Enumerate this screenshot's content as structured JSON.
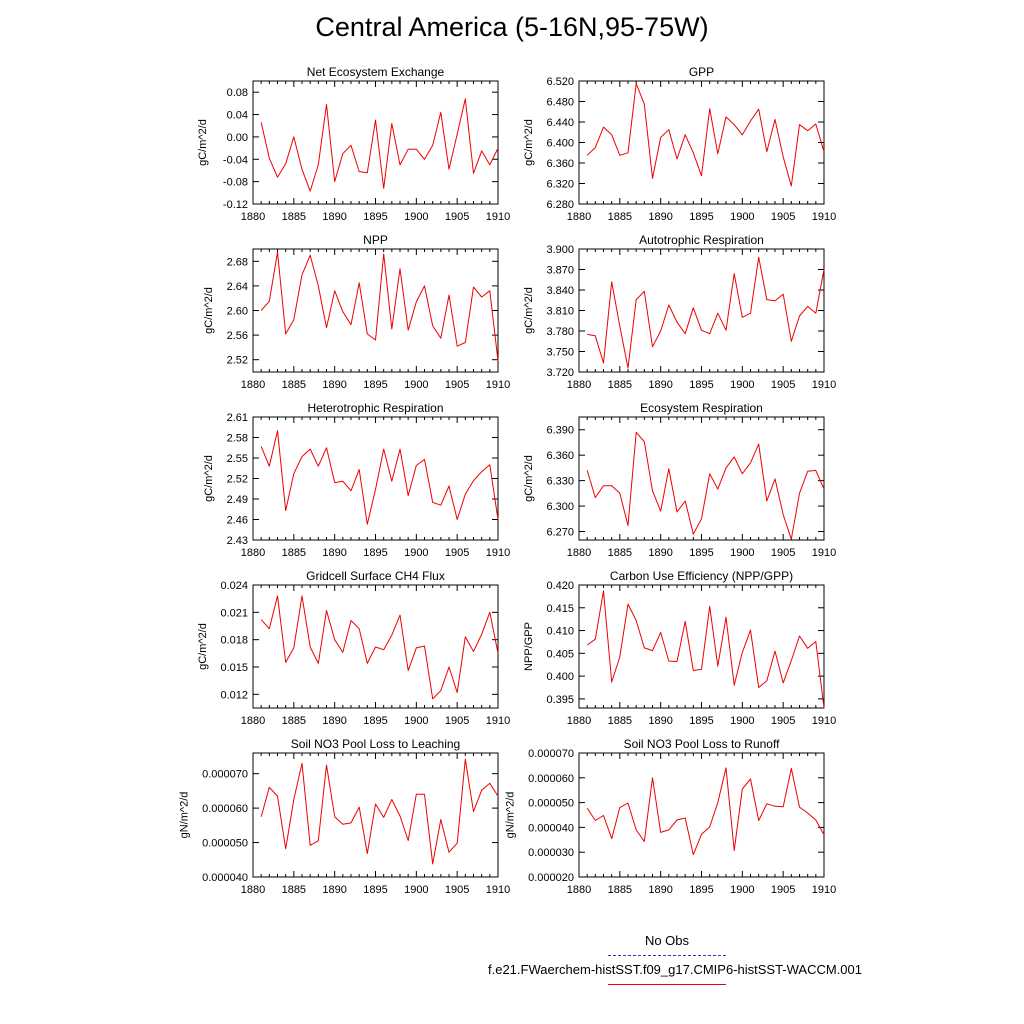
{
  "title": "Central America (5-16N,95-75W)",
  "series_color": "#ee0000",
  "obs_color": "#3333cc",
  "legend": {
    "obs_label": "No Obs",
    "model_label": "f.e21.FWaerchem-histSST.f09_g17.CMIP6-histSST-WACCM.001"
  },
  "chart_data": [
    {
      "type": "line",
      "title": "Net Ecosystem Exchange",
      "ylabel": "gC/m^2/d",
      "xlim": [
        1880,
        1910
      ],
      "ylim": [
        -0.12,
        0.1
      ],
      "x_ticks": [
        "1880",
        "1885",
        "1890",
        "1895",
        "1900",
        "1905",
        "1910"
      ],
      "y_ticks": [
        "-0.12",
        "-0.08",
        "-0.04",
        "0.00",
        "0.04",
        "0.08"
      ],
      "x": [
        1881,
        1882,
        1883,
        1884,
        1885,
        1886,
        1887,
        1888,
        1889,
        1890,
        1891,
        1892,
        1893,
        1894,
        1895,
        1896,
        1897,
        1898,
        1899,
        1900,
        1901,
        1902,
        1903,
        1904,
        1905,
        1906,
        1907,
        1908,
        1909,
        1910
      ],
      "series": [
        {
          "name": "f.e21.FWaerchem-histSST.f09_g17.CMIP6-histSST-WACCM.001",
          "values": [
            0.026,
            -0.038,
            -0.072,
            -0.048,
            0.0,
            -0.058,
            -0.097,
            -0.05,
            0.058,
            -0.08,
            -0.03,
            -0.015,
            -0.062,
            -0.064,
            0.03,
            -0.092,
            0.024,
            -0.05,
            -0.022,
            -0.022,
            -0.04,
            -0.015,
            0.044,
            -0.058,
            0.005,
            0.068,
            -0.065,
            -0.025,
            -0.05,
            -0.02
          ]
        }
      ]
    },
    {
      "type": "line",
      "title": "GPP",
      "ylabel": "gC/m^2/d",
      "xlim": [
        1880,
        1910
      ],
      "ylim": [
        6.28,
        6.52
      ],
      "x_ticks": [
        "1880",
        "1885",
        "1890",
        "1895",
        "1900",
        "1905",
        "1910"
      ],
      "y_ticks": [
        "6.280",
        "6.320",
        "6.360",
        "6.400",
        "6.440",
        "6.480",
        "6.520"
      ],
      "x": [
        1881,
        1882,
        1883,
        1884,
        1885,
        1886,
        1887,
        1888,
        1889,
        1890,
        1891,
        1892,
        1893,
        1894,
        1895,
        1896,
        1897,
        1898,
        1899,
        1900,
        1901,
        1902,
        1903,
        1904,
        1905,
        1906,
        1907,
        1908,
        1909,
        1910
      ],
      "series": [
        {
          "name": "f.e21.FWaerchem-histSST.f09_g17.CMIP6-histSST-WACCM.001",
          "values": [
            6.375,
            6.39,
            6.43,
            6.415,
            6.375,
            6.38,
            6.515,
            6.475,
            6.33,
            6.41,
            6.425,
            6.368,
            6.415,
            6.38,
            6.335,
            6.466,
            6.378,
            6.45,
            6.435,
            6.415,
            6.442,
            6.465,
            6.382,
            6.445,
            6.372,
            6.315,
            6.435,
            6.423,
            6.436,
            6.382
          ]
        }
      ]
    },
    {
      "type": "line",
      "title": "NPP",
      "ylabel": "gC/m^2/d",
      "xlim": [
        1880,
        1910
      ],
      "ylim": [
        2.5,
        2.7
      ],
      "x_ticks": [
        "1880",
        "1885",
        "1890",
        "1895",
        "1900",
        "1905",
        "1910"
      ],
      "y_ticks": [
        "2.52",
        "2.56",
        "2.60",
        "2.64",
        "2.68"
      ],
      "x": [
        1881,
        1882,
        1883,
        1884,
        1885,
        1886,
        1887,
        1888,
        1889,
        1890,
        1891,
        1892,
        1893,
        1894,
        1895,
        1896,
        1897,
        1898,
        1899,
        1900,
        1901,
        1902,
        1903,
        1904,
        1905,
        1906,
        1907,
        1908,
        1909,
        1910
      ],
      "series": [
        {
          "name": "f.e21.FWaerchem-histSST.f09_g17.CMIP6-histSST-WACCM.001",
          "values": [
            2.6,
            2.615,
            2.695,
            2.562,
            2.585,
            2.658,
            2.69,
            2.64,
            2.572,
            2.632,
            2.598,
            2.577,
            2.645,
            2.562,
            2.552,
            2.692,
            2.57,
            2.668,
            2.568,
            2.614,
            2.64,
            2.575,
            2.555,
            2.625,
            2.542,
            2.548,
            2.638,
            2.622,
            2.632,
            2.518
          ]
        }
      ]
    },
    {
      "type": "line",
      "title": "Autotrophic Respiration",
      "ylabel": "gC/m^2/d",
      "xlim": [
        1880,
        1910
      ],
      "ylim": [
        3.72,
        3.9
      ],
      "x_ticks": [
        "1880",
        "1885",
        "1890",
        "1895",
        "1900",
        "1905",
        "1910"
      ],
      "y_ticks": [
        "3.720",
        "3.750",
        "3.780",
        "3.810",
        "3.840",
        "3.870",
        "3.900"
      ],
      "x": [
        1881,
        1882,
        1883,
        1884,
        1885,
        1886,
        1887,
        1888,
        1889,
        1890,
        1891,
        1892,
        1893,
        1894,
        1895,
        1896,
        1897,
        1898,
        1899,
        1900,
        1901,
        1902,
        1903,
        1904,
        1905,
        1906,
        1907,
        1908,
        1909,
        1910
      ],
      "series": [
        {
          "name": "f.e21.FWaerchem-histSST.f09_g17.CMIP6-histSST-WACCM.001",
          "values": [
            3.775,
            3.773,
            3.733,
            3.852,
            3.787,
            3.726,
            3.826,
            3.838,
            3.757,
            3.78,
            3.818,
            3.793,
            3.776,
            3.814,
            3.781,
            3.776,
            3.806,
            3.781,
            3.864,
            3.8,
            3.806,
            3.888,
            3.826,
            3.824,
            3.834,
            3.765,
            3.802,
            3.816,
            3.806,
            3.87
          ]
        }
      ]
    },
    {
      "type": "line",
      "title": "Heterotrophic Respiration",
      "ylabel": "gC/m^2/d",
      "xlim": [
        1880,
        1910
      ],
      "ylim": [
        2.43,
        2.61
      ],
      "x_ticks": [
        "1880",
        "1885",
        "1890",
        "1895",
        "1900",
        "1905",
        "1910"
      ],
      "y_ticks": [
        "2.43",
        "2.46",
        "2.49",
        "2.52",
        "2.55",
        "2.58",
        "2.61"
      ],
      "x": [
        1881,
        1882,
        1883,
        1884,
        1885,
        1886,
        1887,
        1888,
        1889,
        1890,
        1891,
        1892,
        1893,
        1894,
        1895,
        1896,
        1897,
        1898,
        1899,
        1900,
        1901,
        1902,
        1903,
        1904,
        1905,
        1906,
        1907,
        1908,
        1909,
        1910
      ],
      "series": [
        {
          "name": "f.e21.FWaerchem-histSST.f09_g17.CMIP6-histSST-WACCM.001",
          "values": [
            2.567,
            2.538,
            2.59,
            2.473,
            2.527,
            2.552,
            2.563,
            2.538,
            2.565,
            2.514,
            2.516,
            2.502,
            2.533,
            2.453,
            2.504,
            2.563,
            2.516,
            2.563,
            2.495,
            2.539,
            2.548,
            2.485,
            2.481,
            2.509,
            2.46,
            2.497,
            2.517,
            2.53,
            2.54,
            2.46
          ]
        }
      ]
    },
    {
      "type": "line",
      "title": "Ecosystem Respiration",
      "ylabel": "gC/m^2/d",
      "xlim": [
        1880,
        1910
      ],
      "ylim": [
        6.26,
        6.405
      ],
      "x_ticks": [
        "1880",
        "1885",
        "1890",
        "1895",
        "1900",
        "1905",
        "1910"
      ],
      "y_ticks": [
        "6.270",
        "6.300",
        "6.330",
        "6.360",
        "6.390"
      ],
      "x": [
        1881,
        1882,
        1883,
        1884,
        1885,
        1886,
        1887,
        1888,
        1889,
        1890,
        1891,
        1892,
        1893,
        1894,
        1895,
        1896,
        1897,
        1898,
        1899,
        1900,
        1901,
        1902,
        1903,
        1904,
        1905,
        1906,
        1907,
        1908,
        1909,
        1910
      ],
      "series": [
        {
          "name": "f.e21.FWaerchem-histSST.f09_g17.CMIP6-histSST-WACCM.001",
          "values": [
            6.342,
            6.31,
            6.324,
            6.324,
            6.315,
            6.277,
            6.387,
            6.376,
            6.318,
            6.294,
            6.344,
            6.293,
            6.306,
            6.267,
            6.285,
            6.338,
            6.32,
            6.345,
            6.358,
            6.338,
            6.351,
            6.373,
            6.306,
            6.332,
            6.29,
            6.261,
            6.315,
            6.341,
            6.342,
            6.32
          ]
        }
      ]
    },
    {
      "type": "line",
      "title": "Gridcell Surface CH4 Flux",
      "ylabel": "gC/m^2/d",
      "xlim": [
        1880,
        1910
      ],
      "ylim": [
        0.0105,
        0.024
      ],
      "x_ticks": [
        "1880",
        "1885",
        "1890",
        "1895",
        "1900",
        "1905",
        "1910"
      ],
      "y_ticks": [
        "0.012",
        "0.015",
        "0.018",
        "0.021",
        "0.024"
      ],
      "x": [
        1881,
        1882,
        1883,
        1884,
        1885,
        1886,
        1887,
        1888,
        1889,
        1890,
        1891,
        1892,
        1893,
        1894,
        1895,
        1896,
        1897,
        1898,
        1899,
        1900,
        1901,
        1902,
        1903,
        1904,
        1905,
        1906,
        1907,
        1908,
        1909,
        1910
      ],
      "series": [
        {
          "name": "f.e21.FWaerchem-histSST.f09_g17.CMIP6-histSST-WACCM.001",
          "values": [
            0.0202,
            0.0192,
            0.0228,
            0.0155,
            0.0171,
            0.0228,
            0.0172,
            0.0154,
            0.0212,
            0.018,
            0.0166,
            0.0201,
            0.0192,
            0.0154,
            0.0172,
            0.0169,
            0.0185,
            0.0207,
            0.0146,
            0.0171,
            0.0173,
            0.0115,
            0.0124,
            0.015,
            0.0122,
            0.0183,
            0.0167,
            0.0186,
            0.021,
            0.0165
          ]
        }
      ]
    },
    {
      "type": "line",
      "title": "Carbon Use Efficiency (NPP/GPP)",
      "ylabel": "NPP/GPP",
      "xlim": [
        1880,
        1910
      ],
      "ylim": [
        0.393,
        0.42
      ],
      "x_ticks": [
        "1880",
        "1885",
        "1890",
        "1895",
        "1900",
        "1905",
        "1910"
      ],
      "y_ticks": [
        "0.395",
        "0.400",
        "0.405",
        "0.410",
        "0.415",
        "0.420"
      ],
      "x": [
        1881,
        1882,
        1883,
        1884,
        1885,
        1886,
        1887,
        1888,
        1889,
        1890,
        1891,
        1892,
        1893,
        1894,
        1895,
        1896,
        1897,
        1898,
        1899,
        1900,
        1901,
        1902,
        1903,
        1904,
        1905,
        1906,
        1907,
        1908,
        1909,
        1910
      ],
      "series": [
        {
          "name": "f.e21.FWaerchem-histSST.f09_g17.CMIP6-histSST-WACCM.001",
          "values": [
            0.4068,
            0.4081,
            0.4187,
            0.3987,
            0.4042,
            0.4158,
            0.4122,
            0.4062,
            0.4056,
            0.4096,
            0.4033,
            0.4032,
            0.412,
            0.4012,
            0.4015,
            0.4153,
            0.4022,
            0.4129,
            0.398,
            0.4052,
            0.4101,
            0.3975,
            0.399,
            0.4055,
            0.3985,
            0.4034,
            0.4088,
            0.4061,
            0.4076,
            0.393
          ]
        }
      ]
    },
    {
      "type": "line",
      "title": "Soil NO3 Pool Loss to Leaching",
      "ylabel": "gN/m^2/d",
      "xlim": [
        1880,
        1910
      ],
      "ylim": [
        4e-05,
        7.6e-05
      ],
      "x_ticks": [
        "1880",
        "1885",
        "1890",
        "1895",
        "1900",
        "1905",
        "1910"
      ],
      "y_ticks": [
        "0.000040",
        "0.000050",
        "0.000060",
        "0.000070"
      ],
      "x": [
        1881,
        1882,
        1883,
        1884,
        1885,
        1886,
        1887,
        1888,
        1889,
        1890,
        1891,
        1892,
        1893,
        1894,
        1895,
        1896,
        1897,
        1898,
        1899,
        1900,
        1901,
        1902,
        1903,
        1904,
        1905,
        1906,
        1907,
        1908,
        1909,
        1910
      ],
      "series": [
        {
          "name": "f.e21.FWaerchem-histSST.f09_g17.CMIP6-histSST-WACCM.001",
          "values": [
            5.75e-05,
            6.6e-05,
            6.35e-05,
            4.82e-05,
            6.25e-05,
            7.3e-05,
            4.92e-05,
            5.05e-05,
            7.25e-05,
            5.75e-05,
            5.53e-05,
            5.57e-05,
            6.03e-05,
            4.68e-05,
            6.12e-05,
            5.73e-05,
            6.25e-05,
            5.77e-05,
            5.06e-05,
            6.4e-05,
            6.4e-05,
            4.38e-05,
            5.67e-05,
            4.72e-05,
            4.98e-05,
            7.42e-05,
            5.9e-05,
            6.52e-05,
            6.72e-05,
            6.35e-05
          ]
        }
      ]
    },
    {
      "type": "line",
      "title": "Soil NO3 Pool Loss to Runoff",
      "ylabel": "gN/m^2/d",
      "xlim": [
        1880,
        1910
      ],
      "ylim": [
        2e-05,
        7e-05
      ],
      "x_ticks": [
        "1880",
        "1885",
        "1890",
        "1895",
        "1900",
        "1905",
        "1910"
      ],
      "y_ticks": [
        "0.000020",
        "0.000030",
        "0.000040",
        "0.000050",
        "0.000060",
        "0.000070"
      ],
      "x": [
        1881,
        1882,
        1883,
        1884,
        1885,
        1886,
        1887,
        1888,
        1889,
        1890,
        1891,
        1892,
        1893,
        1894,
        1895,
        1896,
        1897,
        1898,
        1899,
        1900,
        1901,
        1902,
        1903,
        1904,
        1905,
        1906,
        1907,
        1908,
        1909,
        1910
      ],
      "series": [
        {
          "name": "f.e21.FWaerchem-histSST.f09_g17.CMIP6-histSST-WACCM.001",
          "values": [
            4.78e-05,
            4.28e-05,
            4.48e-05,
            3.55e-05,
            4.8e-05,
            4.98e-05,
            3.9e-05,
            3.43e-05,
            6e-05,
            3.8e-05,
            3.9e-05,
            4.3e-05,
            4.38e-05,
            2.9e-05,
            3.72e-05,
            4.02e-05,
            5e-05,
            6.4e-05,
            3.07e-05,
            5.55e-05,
            5.95e-05,
            4.28e-05,
            4.95e-05,
            4.85e-05,
            4.83e-05,
            6.38e-05,
            4.82e-05,
            4.58e-05,
            4.3e-05,
            3.7e-05
          ]
        }
      ]
    }
  ]
}
